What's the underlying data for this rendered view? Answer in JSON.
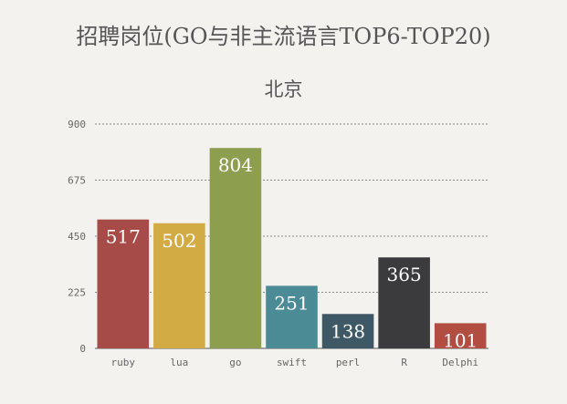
{
  "chart_data": {
    "type": "bar",
    "title": "招聘岗位(GO与非主流语言TOP6-TOP20)",
    "subtitle": "北京",
    "categories": [
      "ruby",
      "lua",
      "go",
      "swift",
      "perl",
      "R",
      "Delphi"
    ],
    "values": [
      517,
      502,
      804,
      251,
      138,
      365,
      101
    ],
    "colors": [
      "#a64b48",
      "#d2ab45",
      "#8e9e4f",
      "#4a8b95",
      "#3e5866",
      "#3b3a3d",
      "#b14d41"
    ],
    "ylim": [
      0,
      900
    ],
    "yticks": [
      0,
      225,
      450,
      675,
      900
    ],
    "grid": true,
    "grid_style": "dashed",
    "xlabel": "",
    "ylabel": ""
  }
}
